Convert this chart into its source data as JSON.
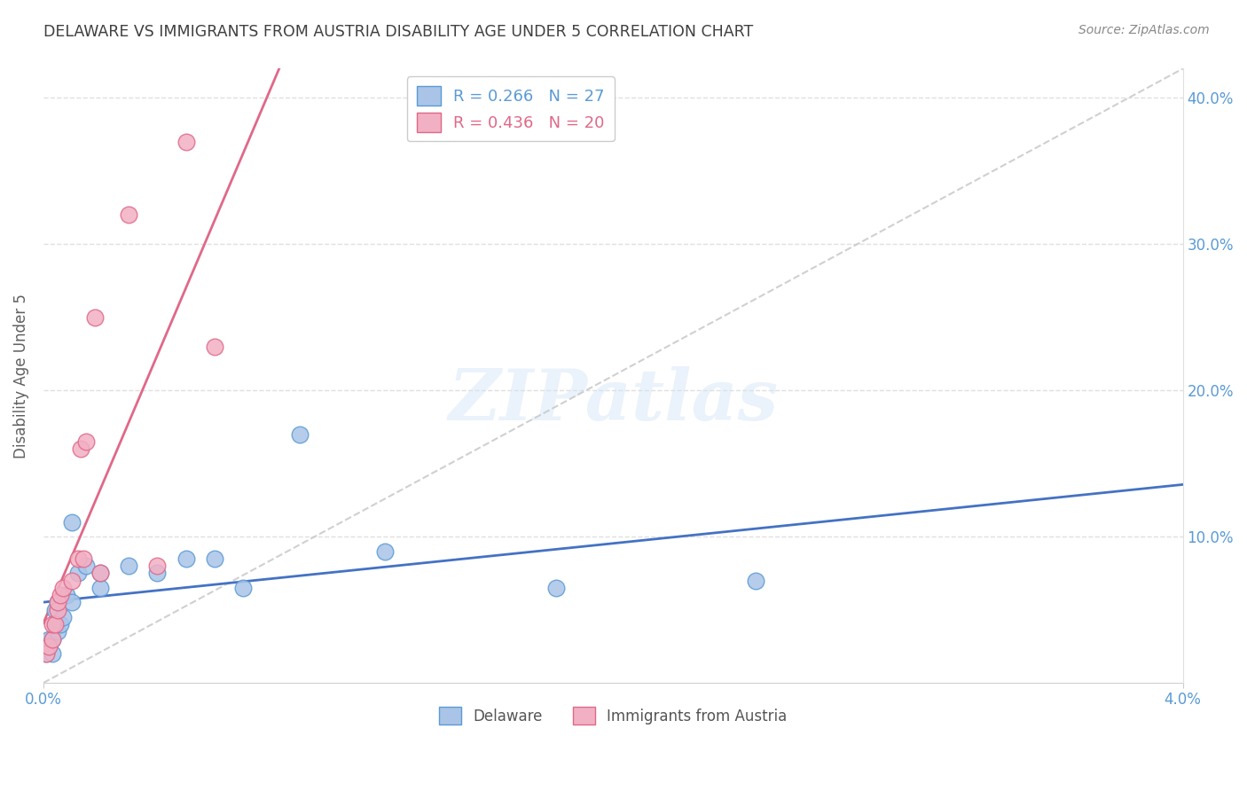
{
  "title": "DELAWARE VS IMMIGRANTS FROM AUSTRIA DISABILITY AGE UNDER 5 CORRELATION CHART",
  "source": "Source: ZipAtlas.com",
  "ylabel": "Disability Age Under 5",
  "watermark": "ZIPatlas",
  "delaware_x": [
    0.0001,
    0.0002,
    0.0002,
    0.0003,
    0.0003,
    0.0004,
    0.0004,
    0.0005,
    0.0005,
    0.0006,
    0.0007,
    0.0008,
    0.001,
    0.001,
    0.0012,
    0.0015,
    0.002,
    0.002,
    0.003,
    0.004,
    0.005,
    0.006,
    0.007,
    0.009,
    0.012,
    0.018,
    0.025
  ],
  "delaware_y": [
    0.02,
    0.025,
    0.03,
    0.02,
    0.03,
    0.04,
    0.05,
    0.035,
    0.055,
    0.04,
    0.045,
    0.06,
    0.11,
    0.055,
    0.075,
    0.08,
    0.065,
    0.075,
    0.08,
    0.075,
    0.085,
    0.085,
    0.065,
    0.17,
    0.09,
    0.065,
    0.07
  ],
  "austria_x": [
    0.0001,
    0.0002,
    0.0003,
    0.0003,
    0.0004,
    0.0005,
    0.0005,
    0.0006,
    0.0007,
    0.001,
    0.0012,
    0.0013,
    0.0014,
    0.0015,
    0.0018,
    0.002,
    0.003,
    0.004,
    0.005,
    0.006
  ],
  "austria_y": [
    0.02,
    0.025,
    0.03,
    0.04,
    0.04,
    0.05,
    0.055,
    0.06,
    0.065,
    0.07,
    0.085,
    0.16,
    0.085,
    0.165,
    0.25,
    0.075,
    0.32,
    0.08,
    0.37,
    0.23
  ],
  "delaware_scatter_color": "#aac4e8",
  "delaware_edge_color": "#5b9bd5",
  "austria_scatter_color": "#f2b0c4",
  "austria_edge_color": "#e06888",
  "delaware_line_color": "#4472c4",
  "austria_line_color": "#e06888",
  "diagonal_color": "#c8c8c8",
  "xlim": [
    0.0,
    0.04
  ],
  "ylim": [
    0.0,
    0.42
  ],
  "xtick_positions": [
    0.0,
    0.04
  ],
  "xtick_labels": [
    "0.0%",
    "4.0%"
  ],
  "ytick_right_positions": [
    0.1,
    0.2,
    0.3,
    0.4
  ],
  "ytick_right_labels": [
    "10.0%",
    "20.0%",
    "30.0%",
    "40.0%"
  ],
  "grid_color": "#e0e0e0",
  "axis_color": "#5b9bd5",
  "title_color": "#404040",
  "source_color": "#888888",
  "ylabel_color": "#606060",
  "legend1_r_text": "R = 0.266",
  "legend1_n_text": "N = 27",
  "legend2_r_text": "R = 0.436",
  "legend2_n_text": "N = 20",
  "bottom_legend_labels": [
    "Delaware",
    "Immigrants from Austria"
  ]
}
